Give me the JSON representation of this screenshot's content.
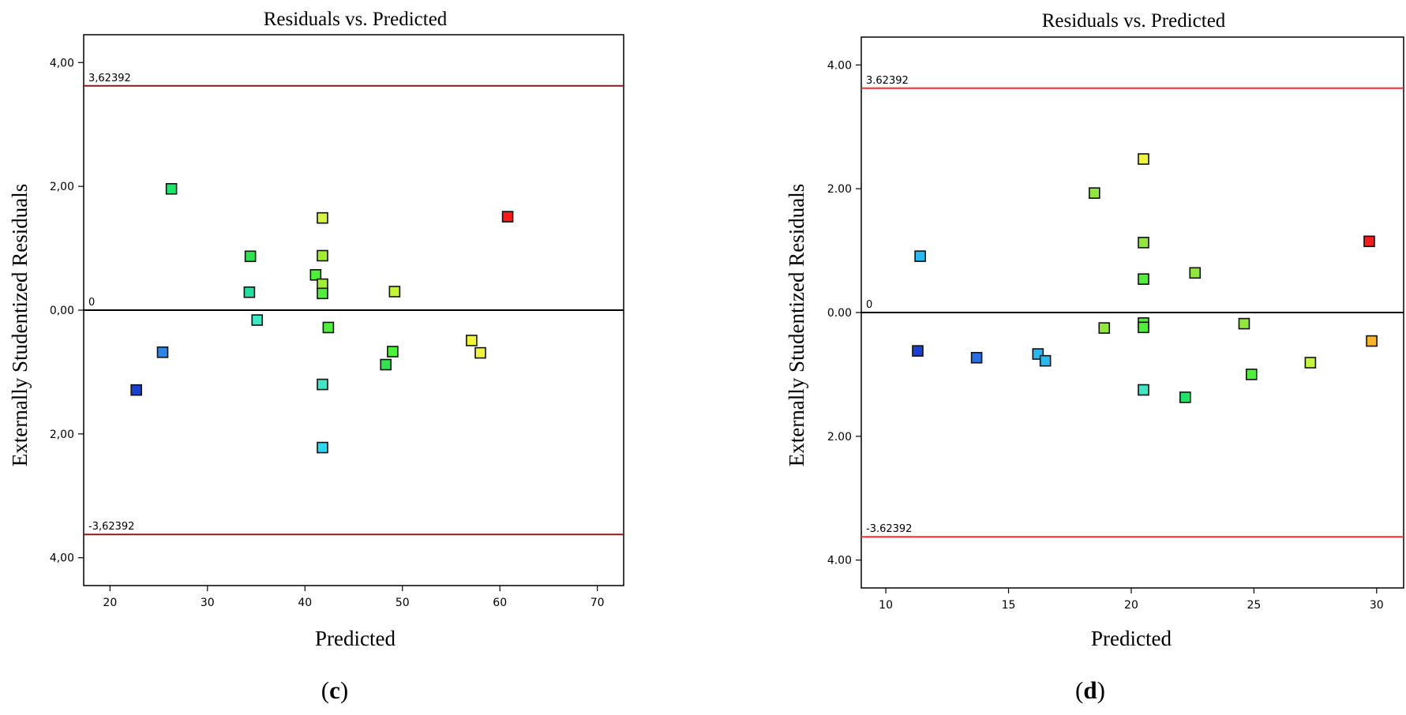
{
  "chart_data": [
    {
      "type": "scatter",
      "title": "Residuals vs. Predicted",
      "xlabel": "Predicted",
      "ylabel": "Externally Studentized Residuals",
      "caption_pre": "(",
      "caption_letter": "c",
      "caption_post": ")",
      "xlim": [
        17.3,
        72.7
      ],
      "ylim": [
        -4.45,
        4.45
      ],
      "x_ticks": [
        {
          "value": 20,
          "label": "20"
        },
        {
          "value": 30,
          "label": "30"
        },
        {
          "value": 40,
          "label": "40"
        },
        {
          "value": 50,
          "label": "50"
        },
        {
          "value": 60,
          "label": "60"
        },
        {
          "value": 70,
          "label": "70"
        }
      ],
      "y_ticks": [
        {
          "value": 4,
          "label": "4,00"
        },
        {
          "value": 2,
          "label": "2,00"
        },
        {
          "value": 0,
          "label": "0,00"
        },
        {
          "value": -2,
          "label": "2,00"
        },
        {
          "value": -4,
          "label": "4,00"
        }
      ],
      "ref_lines": [
        {
          "value": 3.62392,
          "label": "3,62392",
          "color": "#8b1a1a"
        },
        {
          "value": -3.62392,
          "label": "-3,62392",
          "color": "#8b1a1a"
        },
        {
          "value": 0,
          "label": "0",
          "color": "#000000"
        }
      ],
      "points": [
        {
          "x": 26.3,
          "y": 1.96,
          "color": "#22e36a"
        },
        {
          "x": 41.8,
          "y": 1.49,
          "color": "#d6f53d"
        },
        {
          "x": 60.8,
          "y": 1.51,
          "color": "#ff1a1a"
        },
        {
          "x": 34.4,
          "y": 0.87,
          "color": "#2ee34f"
        },
        {
          "x": 41.8,
          "y": 0.88,
          "color": "#9df02a"
        },
        {
          "x": 41.1,
          "y": 0.57,
          "color": "#4ff03a"
        },
        {
          "x": 41.8,
          "y": 0.42,
          "color": "#9df02a"
        },
        {
          "x": 34.3,
          "y": 0.29,
          "color": "#22e0a2"
        },
        {
          "x": 41.8,
          "y": 0.27,
          "color": "#4ff03a"
        },
        {
          "x": 49.2,
          "y": 0.3,
          "color": "#c4f53a"
        },
        {
          "x": 35.1,
          "y": -0.16,
          "color": "#3de8c2"
        },
        {
          "x": 42.4,
          "y": -0.28,
          "color": "#4ff03a"
        },
        {
          "x": 25.4,
          "y": -0.68,
          "color": "#2a86e6"
        },
        {
          "x": 49.0,
          "y": -0.67,
          "color": "#4ff03a"
        },
        {
          "x": 48.3,
          "y": -0.88,
          "color": "#2ee34f"
        },
        {
          "x": 57.1,
          "y": -0.49,
          "color": "#f0f53a"
        },
        {
          "x": 58.0,
          "y": -0.69,
          "color": "#f0f53a"
        },
        {
          "x": 22.7,
          "y": -1.29,
          "color": "#1a3fd6"
        },
        {
          "x": 41.8,
          "y": -1.2,
          "color": "#3de8c2"
        },
        {
          "x": 41.8,
          "y": -2.22,
          "color": "#2ad9f5"
        }
      ]
    },
    {
      "type": "scatter",
      "title": "Residuals vs. Predicted",
      "xlabel": "Predicted",
      "ylabel": "Externally Studentized Residuals",
      "caption_pre": "(",
      "caption_letter": "d",
      "caption_post": ")",
      "xlim": [
        9.0,
        31.1
      ],
      "ylim": [
        -4.45,
        4.45
      ],
      "x_ticks": [
        {
          "value": 10,
          "label": "10"
        },
        {
          "value": 15,
          "label": "15"
        },
        {
          "value": 20,
          "label": "20"
        },
        {
          "value": 25,
          "label": "25"
        },
        {
          "value": 30,
          "label": "30"
        }
      ],
      "y_ticks": [
        {
          "value": 4,
          "label": "4.00"
        },
        {
          "value": 2,
          "label": "2.00"
        },
        {
          "value": 0,
          "label": "0.00"
        },
        {
          "value": -2,
          "label": "2.00"
        },
        {
          "value": -4,
          "label": "4.00"
        }
      ],
      "ref_lines": [
        {
          "value": 3.62392,
          "label": "3.62392",
          "color": "#ff2a2a"
        },
        {
          "value": -3.62392,
          "label": "-3.62392",
          "color": "#ff2a2a"
        },
        {
          "value": 0,
          "label": "0",
          "color": "#000000"
        }
      ],
      "points": [
        {
          "x": 20.5,
          "y": 2.48,
          "color": "#f0f53a"
        },
        {
          "x": 18.5,
          "y": 1.93,
          "color": "#8fe83a"
        },
        {
          "x": 20.5,
          "y": 1.13,
          "color": "#8fe83a"
        },
        {
          "x": 29.7,
          "y": 1.15,
          "color": "#ff1a1a"
        },
        {
          "x": 11.4,
          "y": 0.91,
          "color": "#2ab8f0"
        },
        {
          "x": 22.6,
          "y": 0.64,
          "color": "#8fe83a"
        },
        {
          "x": 20.5,
          "y": 0.54,
          "color": "#4ff03a"
        },
        {
          "x": 20.5,
          "y": -0.17,
          "color": "#4ff03a"
        },
        {
          "x": 20.5,
          "y": -0.24,
          "color": "#4ff03a"
        },
        {
          "x": 18.9,
          "y": -0.25,
          "color": "#8fe83a"
        },
        {
          "x": 24.6,
          "y": -0.18,
          "color": "#8fe83a"
        },
        {
          "x": 29.8,
          "y": -0.46,
          "color": "#f7b62a"
        },
        {
          "x": 11.3,
          "y": -0.62,
          "color": "#1a3fd6"
        },
        {
          "x": 13.7,
          "y": -0.73,
          "color": "#2a6ee6"
        },
        {
          "x": 16.2,
          "y": -0.67,
          "color": "#2ab8f0"
        },
        {
          "x": 16.5,
          "y": -0.78,
          "color": "#2ab8f0"
        },
        {
          "x": 27.3,
          "y": -0.81,
          "color": "#c4f53a"
        },
        {
          "x": 24.9,
          "y": -1.0,
          "color": "#4ff03a"
        },
        {
          "x": 20.5,
          "y": -1.25,
          "color": "#3de8c2"
        },
        {
          "x": 22.2,
          "y": -1.37,
          "color": "#22e36a"
        }
      ]
    }
  ]
}
